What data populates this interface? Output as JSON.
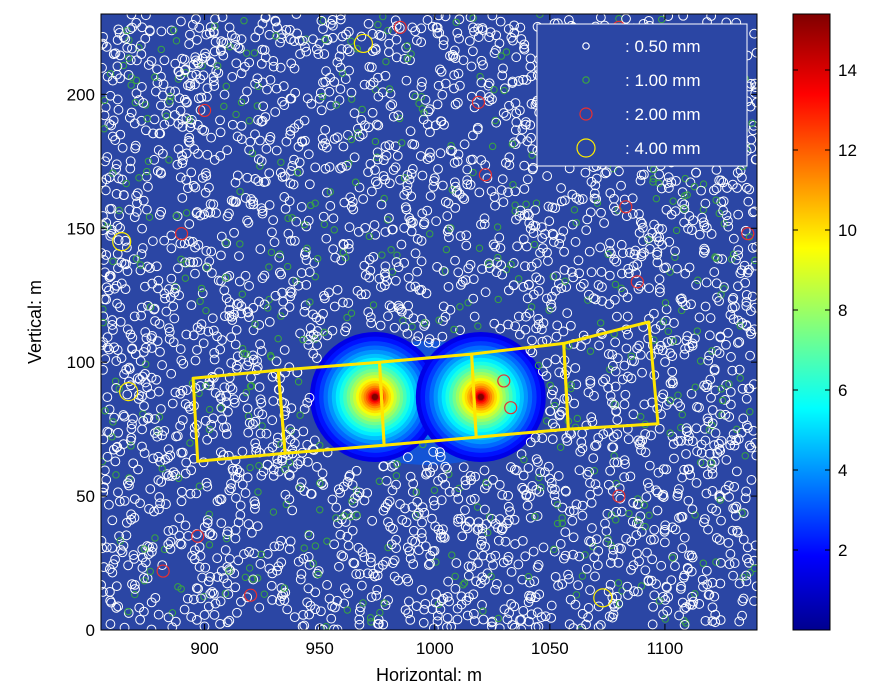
{
  "chart_data": {
    "type": "scatter",
    "subtype": "filled-contour map with scatter overlay and grid",
    "title": "",
    "xlabel": "Horizontal: m",
    "ylabel": "Vertical: m",
    "xlim": [
      855,
      1140
    ],
    "ylim": [
      0,
      230
    ],
    "xticks": [
      900,
      950,
      1000,
      1050,
      1100
    ],
    "yticks": [
      0,
      50,
      100,
      150,
      200
    ],
    "grid": false,
    "legend_position": "top-right",
    "legend": [
      {
        "label": " : 0.50 mm",
        "color": "#ffffff",
        "marker": "circle-small"
      },
      {
        "label": " : 1.00 mm",
        "color": "#3aa640",
        "marker": "circle-small"
      },
      {
        "label": " : 2.00 mm",
        "color": "#e83030",
        "marker": "circle-medium"
      },
      {
        "label": " : 4.00 mm",
        "color": "#ffee00",
        "marker": "circle-large"
      }
    ],
    "colorbar": {
      "range": [
        0,
        15.4
      ],
      "ticks": [
        2,
        4,
        6,
        8,
        10,
        12,
        14
      ],
      "colormap": "jet"
    },
    "hotspots": [
      {
        "x": 974,
        "y": 87,
        "peak": 15.4
      },
      {
        "x": 1020,
        "y": 87,
        "peak": 15.4
      }
    ],
    "grid_outline": {
      "color": "#ffe600",
      "cells": [
        [
          [
            897,
            63
          ],
          [
            935,
            66
          ],
          [
            932,
            97
          ],
          [
            895,
            94
          ]
        ],
        [
          [
            935,
            66
          ],
          [
            978,
            69
          ],
          [
            976,
            100
          ],
          [
            932,
            97
          ]
        ],
        [
          [
            978,
            69
          ],
          [
            1018,
            72
          ],
          [
            1016,
            103
          ],
          [
            976,
            100
          ]
        ],
        [
          [
            1018,
            72
          ],
          [
            1058,
            75
          ],
          [
            1056,
            107
          ],
          [
            1016,
            103
          ]
        ],
        [
          [
            1058,
            75
          ],
          [
            1097,
            77
          ],
          [
            1093,
            115
          ],
          [
            1056,
            107
          ]
        ]
      ]
    },
    "scatter_series": [
      {
        "name": " : 0.50 mm",
        "color": "#ffffff",
        "size_mm": 0.5,
        "points_visible": "dense field across the whole map, sparser around the contour sources"
      },
      {
        "name": " : 1.00 mm",
        "color": "#3aa640",
        "size_mm": 1.0,
        "points_visible": "scattered"
      },
      {
        "name": " : 2.00 mm",
        "color": "#e83030",
        "size_mm": 2.0,
        "points": [
          [
            900,
            194
          ],
          [
            1019,
            197
          ],
          [
            1022,
            170
          ],
          [
            1088,
            130
          ],
          [
            1083,
            158
          ],
          [
            1136,
            148
          ],
          [
            890,
            148
          ],
          [
            1030,
            93
          ],
          [
            1033,
            83
          ],
          [
            1080,
            50
          ],
          [
            897,
            35
          ],
          [
            882,
            22
          ],
          [
            920,
            13
          ],
          [
            985,
            225
          ],
          [
            1080,
            225
          ]
        ]
      },
      {
        "name": " : 4.00 mm",
        "color": "#ffee00",
        "size_mm": 4.0,
        "points": [
          [
            969,
            219
          ],
          [
            864,
            145
          ],
          [
            867,
            89
          ],
          [
            1073,
            12
          ]
        ]
      }
    ]
  }
}
